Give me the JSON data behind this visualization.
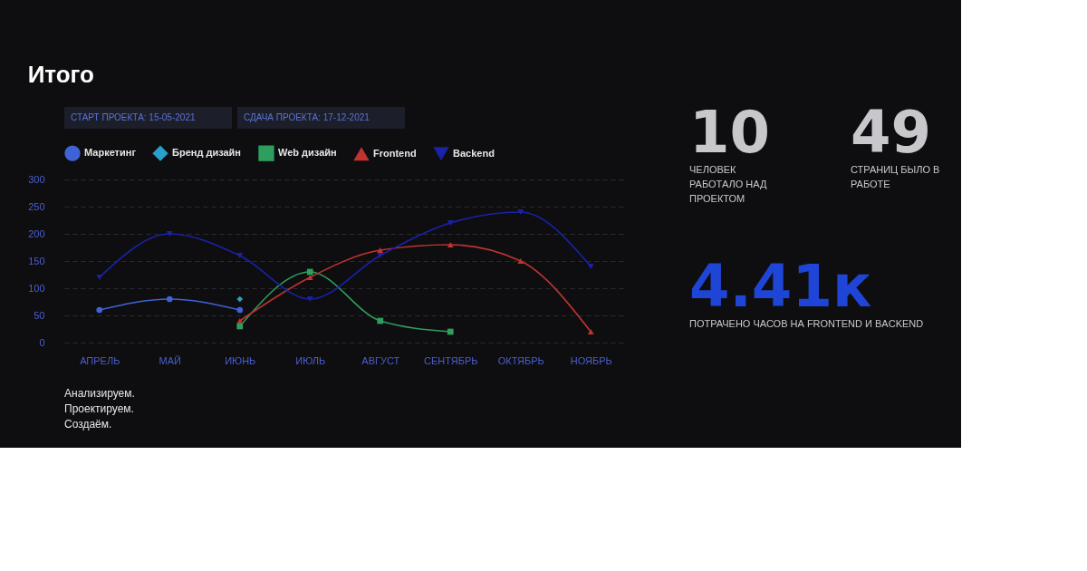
{
  "chart_data": [
    {
      "type": "line",
      "title": "Итого",
      "annotations": [
        "СТАРТ ПРОЕКТА: 15-05-2021",
        "СДАЧА ПРОЕКТА: 17-12-2021"
      ],
      "categories": [
        "АПРЕЛЬ",
        "МАЙ",
        "ИЮНЬ",
        "ИЮЛЬ",
        "АВГУСТ",
        "СЕНТЯБРЬ",
        "ОКТЯБРЬ",
        "НОЯБРЬ"
      ],
      "series": [
        {
          "name": "Маркетинг",
          "color": "#3f63d6",
          "marker": "circle",
          "values": [
            60,
            80,
            60,
            null,
            null,
            null,
            null,
            null
          ]
        },
        {
          "name": "Бренд дизайн",
          "color": "#2a9fc9",
          "marker": "diamond",
          "values": [
            null,
            null,
            80,
            null,
            null,
            null,
            null,
            null
          ]
        },
        {
          "name": "Web дизайн",
          "color": "#2e9e5e",
          "marker": "square",
          "values": [
            null,
            null,
            30,
            130,
            40,
            20,
            null,
            null
          ]
        },
        {
          "name": "Frontend",
          "color": "#c0332f",
          "marker": "triangle",
          "values": [
            null,
            null,
            40,
            120,
            170,
            180,
            150,
            20
          ]
        },
        {
          "name": "Backend",
          "color": "#1a22a8",
          "marker": "triangle-down",
          "values": [
            120,
            200,
            160,
            80,
            160,
            220,
            240,
            140
          ]
        }
      ],
      "ylim": [
        0,
        300
      ],
      "yticks": [
        0,
        50,
        100,
        150,
        200,
        250,
        300
      ],
      "grid": "y",
      "legend": "top",
      "line_style": "solid"
    },
    {
      "type": "other",
      "annotations": [
        "10",
        "ЧЕЛОВЕК РАБОТАЛО НАД ПРОЕКТОМ",
        "49",
        "СТРАНИЦ БЫЛО В РАБОТЕ",
        "4.41к",
        "ПОТРАЧЕНО ЧАСОВ НА FRONTEND И BACKEND"
      ],
      "colors": [
        "#c8c8cc",
        "#c8c8cc",
        "#c8c8cc",
        "#c8c8cc",
        "#1f45d6",
        "#c8c8cc"
      ]
    },
    {
      "type": "other",
      "annotations": [
        "Анализируем.",
        "Проектируем.",
        "Создаём."
      ]
    }
  ]
}
